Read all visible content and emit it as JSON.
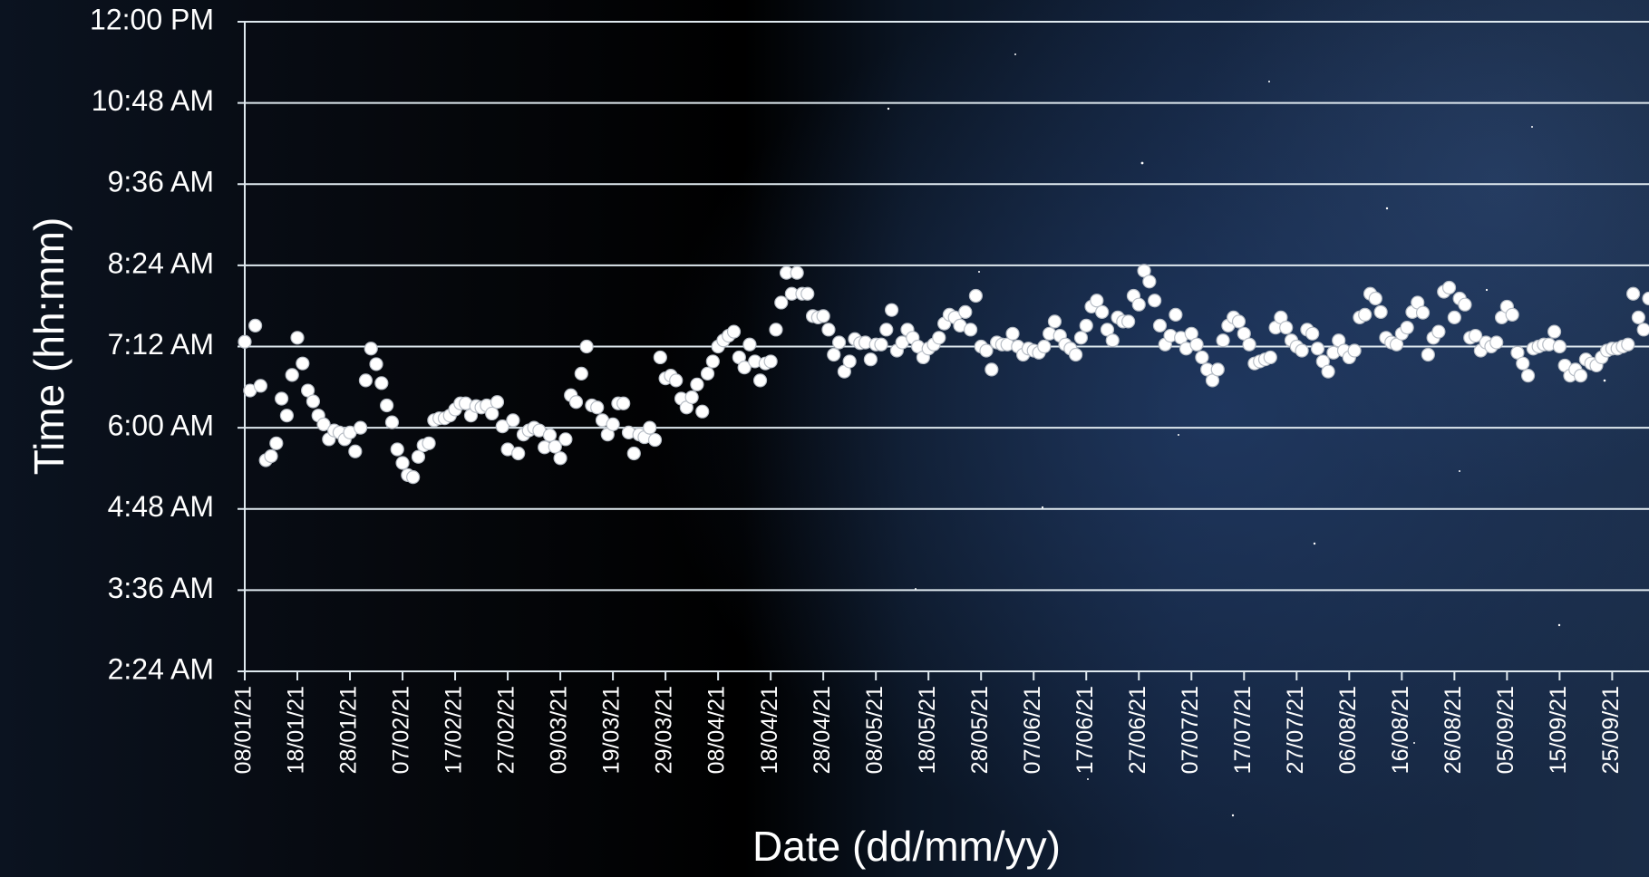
{
  "chart_data": {
    "type": "scatter",
    "x_label": "Date (dd/mm/yy)",
    "y_label": "Time (hh:mm)",
    "color": "#ffffff",
    "xlim": [
      "2021-01-08",
      "2021-10-02"
    ],
    "xticks": [
      {
        "value": "2021-01-08",
        "label": "08/01/21"
      },
      {
        "value": "2021-01-18",
        "label": "18/01/21"
      },
      {
        "value": "2021-01-28",
        "label": "28/01/21"
      },
      {
        "value": "2021-02-07",
        "label": "07/02/21"
      },
      {
        "value": "2021-02-17",
        "label": "17/02/21"
      },
      {
        "value": "2021-02-27",
        "label": "27/02/21"
      },
      {
        "value": "2021-03-09",
        "label": "09/03/21"
      },
      {
        "value": "2021-03-19",
        "label": "19/03/21"
      },
      {
        "value": "2021-03-29",
        "label": "29/03/21"
      },
      {
        "value": "2021-04-08",
        "label": "08/04/21"
      },
      {
        "value": "2021-04-18",
        "label": "18/04/21"
      },
      {
        "value": "2021-04-28",
        "label": "28/04/21"
      },
      {
        "value": "2021-05-08",
        "label": "08/05/21"
      },
      {
        "value": "2021-05-18",
        "label": "18/05/21"
      },
      {
        "value": "2021-05-28",
        "label": "28/05/21"
      },
      {
        "value": "2021-06-07",
        "label": "07/06/21"
      },
      {
        "value": "2021-06-17",
        "label": "17/06/21"
      },
      {
        "value": "2021-06-27",
        "label": "27/06/21"
      },
      {
        "value": "2021-07-07",
        "label": "07/07/21"
      },
      {
        "value": "2021-07-17",
        "label": "17/07/21"
      },
      {
        "value": "2021-07-27",
        "label": "27/07/21"
      },
      {
        "value": "2021-08-06",
        "label": "06/08/21"
      },
      {
        "value": "2021-08-16",
        "label": "16/08/21"
      },
      {
        "value": "2021-08-26",
        "label": "26/08/21"
      },
      {
        "value": "2021-09-05",
        "label": "05/09/21"
      },
      {
        "value": "2021-09-15",
        "label": "15/09/21"
      },
      {
        "value": "2021-09-25",
        "label": "25/09/21"
      }
    ],
    "ylim": [
      2.4,
      12
    ],
    "yticks": [
      {
        "value": 2.4,
        "label": "2:24 AM"
      },
      {
        "value": 3.6,
        "label": "3:36 AM"
      },
      {
        "value": 4.8,
        "label": "4:48 AM"
      },
      {
        "value": 6,
        "label": "6:00 AM"
      },
      {
        "value": 7.2,
        "label": "7:12 AM"
      },
      {
        "value": 8.4,
        "label": "8:24 AM"
      },
      {
        "value": 9.6,
        "label": "9:36 AM"
      },
      {
        "value": 10.8,
        "label": "10:48 AM"
      },
      {
        "value": 12,
        "label": "12:00 PM"
      }
    ],
    "grid": true,
    "x": [
      "2021-01-08",
      "2021-01-09",
      "2021-01-10",
      "2021-01-11",
      "2021-01-12",
      "2021-01-13",
      "2021-01-14",
      "2021-01-15",
      "2021-01-16",
      "2021-01-17",
      "2021-01-18",
      "2021-01-19",
      "2021-01-20",
      "2021-01-21",
      "2021-01-22",
      "2021-01-23",
      "2021-01-24",
      "2021-01-25",
      "2021-01-26",
      "2021-01-27",
      "2021-01-28",
      "2021-01-29",
      "2021-01-30",
      "2021-01-31",
      "2021-02-01",
      "2021-02-02",
      "2021-02-03",
      "2021-02-04",
      "2021-02-05",
      "2021-02-06",
      "2021-02-07",
      "2021-02-08",
      "2021-02-09",
      "2021-02-10",
      "2021-02-11",
      "2021-02-12",
      "2021-02-13",
      "2021-02-14",
      "2021-02-15",
      "2021-02-16",
      "2021-02-17",
      "2021-02-18",
      "2021-02-19",
      "2021-02-20",
      "2021-02-21",
      "2021-02-22",
      "2021-02-23",
      "2021-02-24",
      "2021-02-25",
      "2021-02-26",
      "2021-02-27",
      "2021-02-28",
      "2021-03-01",
      "2021-03-02",
      "2021-03-03",
      "2021-03-04",
      "2021-03-05",
      "2021-03-06",
      "2021-03-07",
      "2021-03-08",
      "2021-03-09",
      "2021-03-10",
      "2021-03-11",
      "2021-03-12",
      "2021-03-13",
      "2021-03-14",
      "2021-03-15",
      "2021-03-16",
      "2021-03-17",
      "2021-03-18",
      "2021-03-19",
      "2021-03-20",
      "2021-03-21",
      "2021-03-22",
      "2021-03-23",
      "2021-03-24",
      "2021-03-25",
      "2021-03-26",
      "2021-03-27",
      "2021-03-28",
      "2021-03-29",
      "2021-03-30",
      "2021-03-31",
      "2021-04-01",
      "2021-04-02",
      "2021-04-03",
      "2021-04-04",
      "2021-04-05",
      "2021-04-06",
      "2021-04-07",
      "2021-04-08",
      "2021-04-09",
      "2021-04-10",
      "2021-04-11",
      "2021-04-12",
      "2021-04-13",
      "2021-04-14",
      "2021-04-15",
      "2021-04-16",
      "2021-04-17",
      "2021-04-18",
      "2021-04-19",
      "2021-04-20",
      "2021-04-21",
      "2021-04-22",
      "2021-04-23",
      "2021-04-24",
      "2021-04-25",
      "2021-04-26",
      "2021-04-27",
      "2021-04-28",
      "2021-04-29",
      "2021-04-30",
      "2021-05-01",
      "2021-05-02",
      "2021-05-03",
      "2021-05-04",
      "2021-05-05",
      "2021-05-06",
      "2021-05-07",
      "2021-05-08",
      "2021-05-09",
      "2021-05-10",
      "2021-05-11",
      "2021-05-12",
      "2021-05-13",
      "2021-05-14",
      "2021-05-15",
      "2021-05-16",
      "2021-05-17",
      "2021-05-18",
      "2021-05-19",
      "2021-05-20",
      "2021-05-21",
      "2021-05-22",
      "2021-05-23",
      "2021-05-24",
      "2021-05-25",
      "2021-05-26",
      "2021-05-27",
      "2021-05-28",
      "2021-05-29",
      "2021-05-30",
      "2021-05-31",
      "2021-06-01",
      "2021-06-02",
      "2021-06-03",
      "2021-06-04",
      "2021-06-05",
      "2021-06-06",
      "2021-06-07",
      "2021-06-08",
      "2021-06-09",
      "2021-06-10",
      "2021-06-11",
      "2021-06-12",
      "2021-06-13",
      "2021-06-14",
      "2021-06-15",
      "2021-06-16",
      "2021-06-17",
      "2021-06-18",
      "2021-06-19",
      "2021-06-20",
      "2021-06-21",
      "2021-06-22",
      "2021-06-23",
      "2021-06-24",
      "2021-06-25",
      "2021-06-26",
      "2021-06-27",
      "2021-06-28",
      "2021-06-29",
      "2021-06-30",
      "2021-07-01",
      "2021-07-02",
      "2021-07-03",
      "2021-07-04",
      "2021-07-05",
      "2021-07-06",
      "2021-07-07",
      "2021-07-08",
      "2021-07-09",
      "2021-07-10",
      "2021-07-11",
      "2021-07-12",
      "2021-07-13",
      "2021-07-14",
      "2021-07-15",
      "2021-07-16",
      "2021-07-17",
      "2021-07-18",
      "2021-07-19",
      "2021-07-20",
      "2021-07-21",
      "2021-07-22",
      "2021-07-23",
      "2021-07-24",
      "2021-07-25",
      "2021-07-26",
      "2021-07-27",
      "2021-07-28",
      "2021-07-29",
      "2021-07-30",
      "2021-07-31",
      "2021-08-01",
      "2021-08-02",
      "2021-08-03",
      "2021-08-04",
      "2021-08-05",
      "2021-08-06",
      "2021-08-07",
      "2021-08-08",
      "2021-08-09",
      "2021-08-10",
      "2021-08-11",
      "2021-08-12",
      "2021-08-13",
      "2021-08-14",
      "2021-08-15",
      "2021-08-16",
      "2021-08-17",
      "2021-08-18",
      "2021-08-19",
      "2021-08-20",
      "2021-08-21",
      "2021-08-22",
      "2021-08-23",
      "2021-08-24",
      "2021-08-25",
      "2021-08-26",
      "2021-08-27",
      "2021-08-28",
      "2021-08-29",
      "2021-08-30",
      "2021-08-31",
      "2021-09-01",
      "2021-09-02",
      "2021-09-03",
      "2021-09-04",
      "2021-09-05",
      "2021-09-06",
      "2021-09-07",
      "2021-09-08",
      "2021-09-09",
      "2021-09-10",
      "2021-09-11",
      "2021-09-12",
      "2021-09-13",
      "2021-09-14",
      "2021-09-15",
      "2021-09-16",
      "2021-09-17",
      "2021-09-18",
      "2021-09-19",
      "2021-09-20",
      "2021-09-21",
      "2021-09-22",
      "2021-09-23",
      "2021-09-24",
      "2021-09-25",
      "2021-09-26",
      "2021-09-27",
      "2021-09-28",
      "2021-09-29",
      "2021-09-30",
      "2021-10-01",
      "2021-10-02"
    ],
    "values": [
      7.27,
      6.55,
      7.51,
      6.62,
      5.52,
      5.58,
      5.77,
      6.43,
      6.18,
      6.78,
      7.33,
      6.95,
      6.55,
      6.39,
      6.18,
      6.05,
      5.83,
      5.96,
      5.93,
      5.83,
      5.93,
      5.65,
      6.0,
      6.7,
      7.17,
      6.94,
      6.66,
      6.33,
      6.08,
      5.68,
      5.48,
      5.3,
      5.27,
      5.57,
      5.74,
      5.77,
      6.11,
      6.14,
      6.14,
      6.18,
      6.27,
      6.36,
      6.36,
      6.18,
      6.32,
      6.3,
      6.33,
      6.21,
      6.38,
      6.02,
      5.68,
      6.11,
      5.62,
      5.9,
      5.96,
      6.0,
      5.96,
      5.71,
      5.89,
      5.72,
      5.55,
      5.83,
      6.48,
      6.38,
      6.8,
      7.2,
      6.33,
      6.3,
      6.11,
      5.9,
      6.05,
      6.36,
      6.36,
      5.93,
      5.62,
      5.9,
      5.86,
      6.0,
      5.82,
      7.04,
      6.73,
      6.77,
      6.7,
      6.43,
      6.3,
      6.45,
      6.64,
      6.24,
      6.8,
      6.98,
      7.2,
      7.29,
      7.36,
      7.42,
      7.04,
      6.89,
      7.23,
      6.98,
      6.7,
      6.95,
      6.98,
      7.45,
      7.85,
      8.29,
      7.98,
      8.29,
      7.98,
      7.98,
      7.65,
      7.63,
      7.65,
      7.45,
      7.08,
      7.26,
      6.83,
      6.98,
      7.31,
      7.25,
      7.26,
      7.01,
      7.23,
      7.23,
      7.45,
      7.74,
      7.14,
      7.26,
      7.45,
      7.33,
      7.2,
      7.04,
      7.17,
      7.23,
      7.33,
      7.54,
      7.67,
      7.63,
      7.51,
      7.71,
      7.45,
      7.95,
      7.2,
      7.14,
      6.86,
      7.26,
      7.23,
      7.23,
      7.39,
      7.2,
      7.08,
      7.17,
      7.14,
      7.11,
      7.2,
      7.39,
      7.57,
      7.36,
      7.23,
      7.17,
      7.08,
      7.33,
      7.51,
      7.79,
      7.88,
      7.71,
      7.45,
      7.29,
      7.63,
      7.57,
      7.57,
      7.95,
      7.82,
      8.32,
      8.16,
      7.88,
      7.51,
      7.23,
      7.36,
      7.67,
      7.33,
      7.17,
      7.39,
      7.23,
      7.04,
      6.86,
      6.7,
      6.86,
      7.29,
      7.51,
      7.63,
      7.57,
      7.39,
      7.23,
      6.95,
      6.98,
      7.01,
      7.04,
      7.48,
      7.63,
      7.48,
      7.29,
      7.2,
      7.14,
      7.45,
      7.39,
      7.17,
      6.98,
      6.83,
      7.11,
      7.29,
      7.14,
      7.04,
      7.14,
      7.63,
      7.67,
      7.98,
      7.91,
      7.71,
      7.33,
      7.26,
      7.23,
      7.39,
      7.48,
      7.71,
      7.85,
      7.7,
      7.08,
      7.33,
      7.42,
      8.01,
      8.07,
      7.63,
      7.91,
      7.82,
      7.33,
      7.36,
      7.14,
      7.26,
      7.2,
      7.26,
      7.63,
      7.79,
      7.67,
      7.11,
      6.95,
      6.77,
      7.17,
      7.2,
      7.23,
      7.23,
      7.42,
      7.2,
      6.92,
      6.77,
      6.86,
      6.77,
      7.01,
      6.95,
      6.92,
      7.04,
      7.14,
      7.17,
      7.17,
      7.2,
      7.23,
      7.98,
      7.63,
      7.45,
      7.91
    ]
  }
}
